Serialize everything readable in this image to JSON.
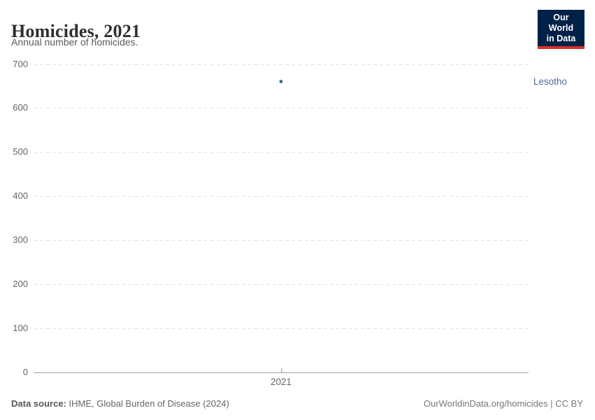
{
  "header": {
    "title": "Homicides, 2021",
    "subtitle": "Annual number of homicides.",
    "logo": {
      "line1": "Our World",
      "line2": "in Data",
      "bg_color": "#002147",
      "accent_color": "#D8302B"
    }
  },
  "chart_data": {
    "type": "scatter",
    "title": "Homicides, 2021",
    "xlabel": "",
    "ylabel": "",
    "ylim": [
      0,
      700
    ],
    "y_ticks": [
      0,
      100,
      200,
      300,
      400,
      500,
      600,
      700
    ],
    "x_categories": [
      "2021"
    ],
    "grid": "horizontal-dashed",
    "legend_position": "right-of-plot",
    "series": [
      {
        "name": "Lesotho",
        "x": "2021",
        "value": 660,
        "color": "#4C6A9C"
      }
    ]
  },
  "footer": {
    "datasource_label": "Data source:",
    "datasource_value": " IHME, Global Burden of Disease (2024)",
    "rights": "OurWorldinData.org/homicides | CC BY"
  }
}
